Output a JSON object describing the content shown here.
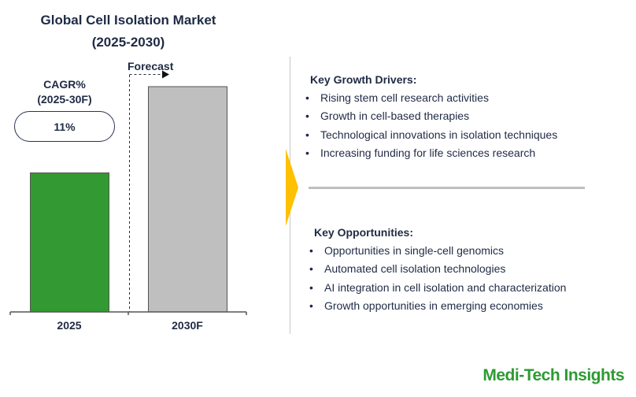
{
  "chart_data": {
    "type": "bar",
    "title": "Global Cell Isolation Market",
    "subtitle": "(2025-2030)",
    "categories": [
      "2025",
      "2030F"
    ],
    "values": [
      100,
      162
    ],
    "colors": [
      "#339933",
      "#bfbfbf"
    ],
    "value_axis_visible": false,
    "grid": false,
    "forecast_label": "Forecast",
    "cagr_label": "CAGR%",
    "cagr_period": "(2025-30F)",
    "cagr_value": "11%"
  },
  "drivers": {
    "heading": "Key Growth Drivers:",
    "items": [
      "Rising stem cell research activities",
      "Growth in cell-based therapies",
      "Technological innovations in isolation techniques",
      "Increasing funding for life sciences research"
    ]
  },
  "opportunities": {
    "heading": "Key Opportunities:",
    "items": [
      "Opportunities in single-cell genomics",
      "Automated cell isolation technologies",
      "AI integration in cell isolation and characterization",
      "Growth opportunities in emerging economies"
    ]
  },
  "bullet": "•",
  "accent_color": "#ffc000",
  "brand": "Medi-Tech Insights"
}
